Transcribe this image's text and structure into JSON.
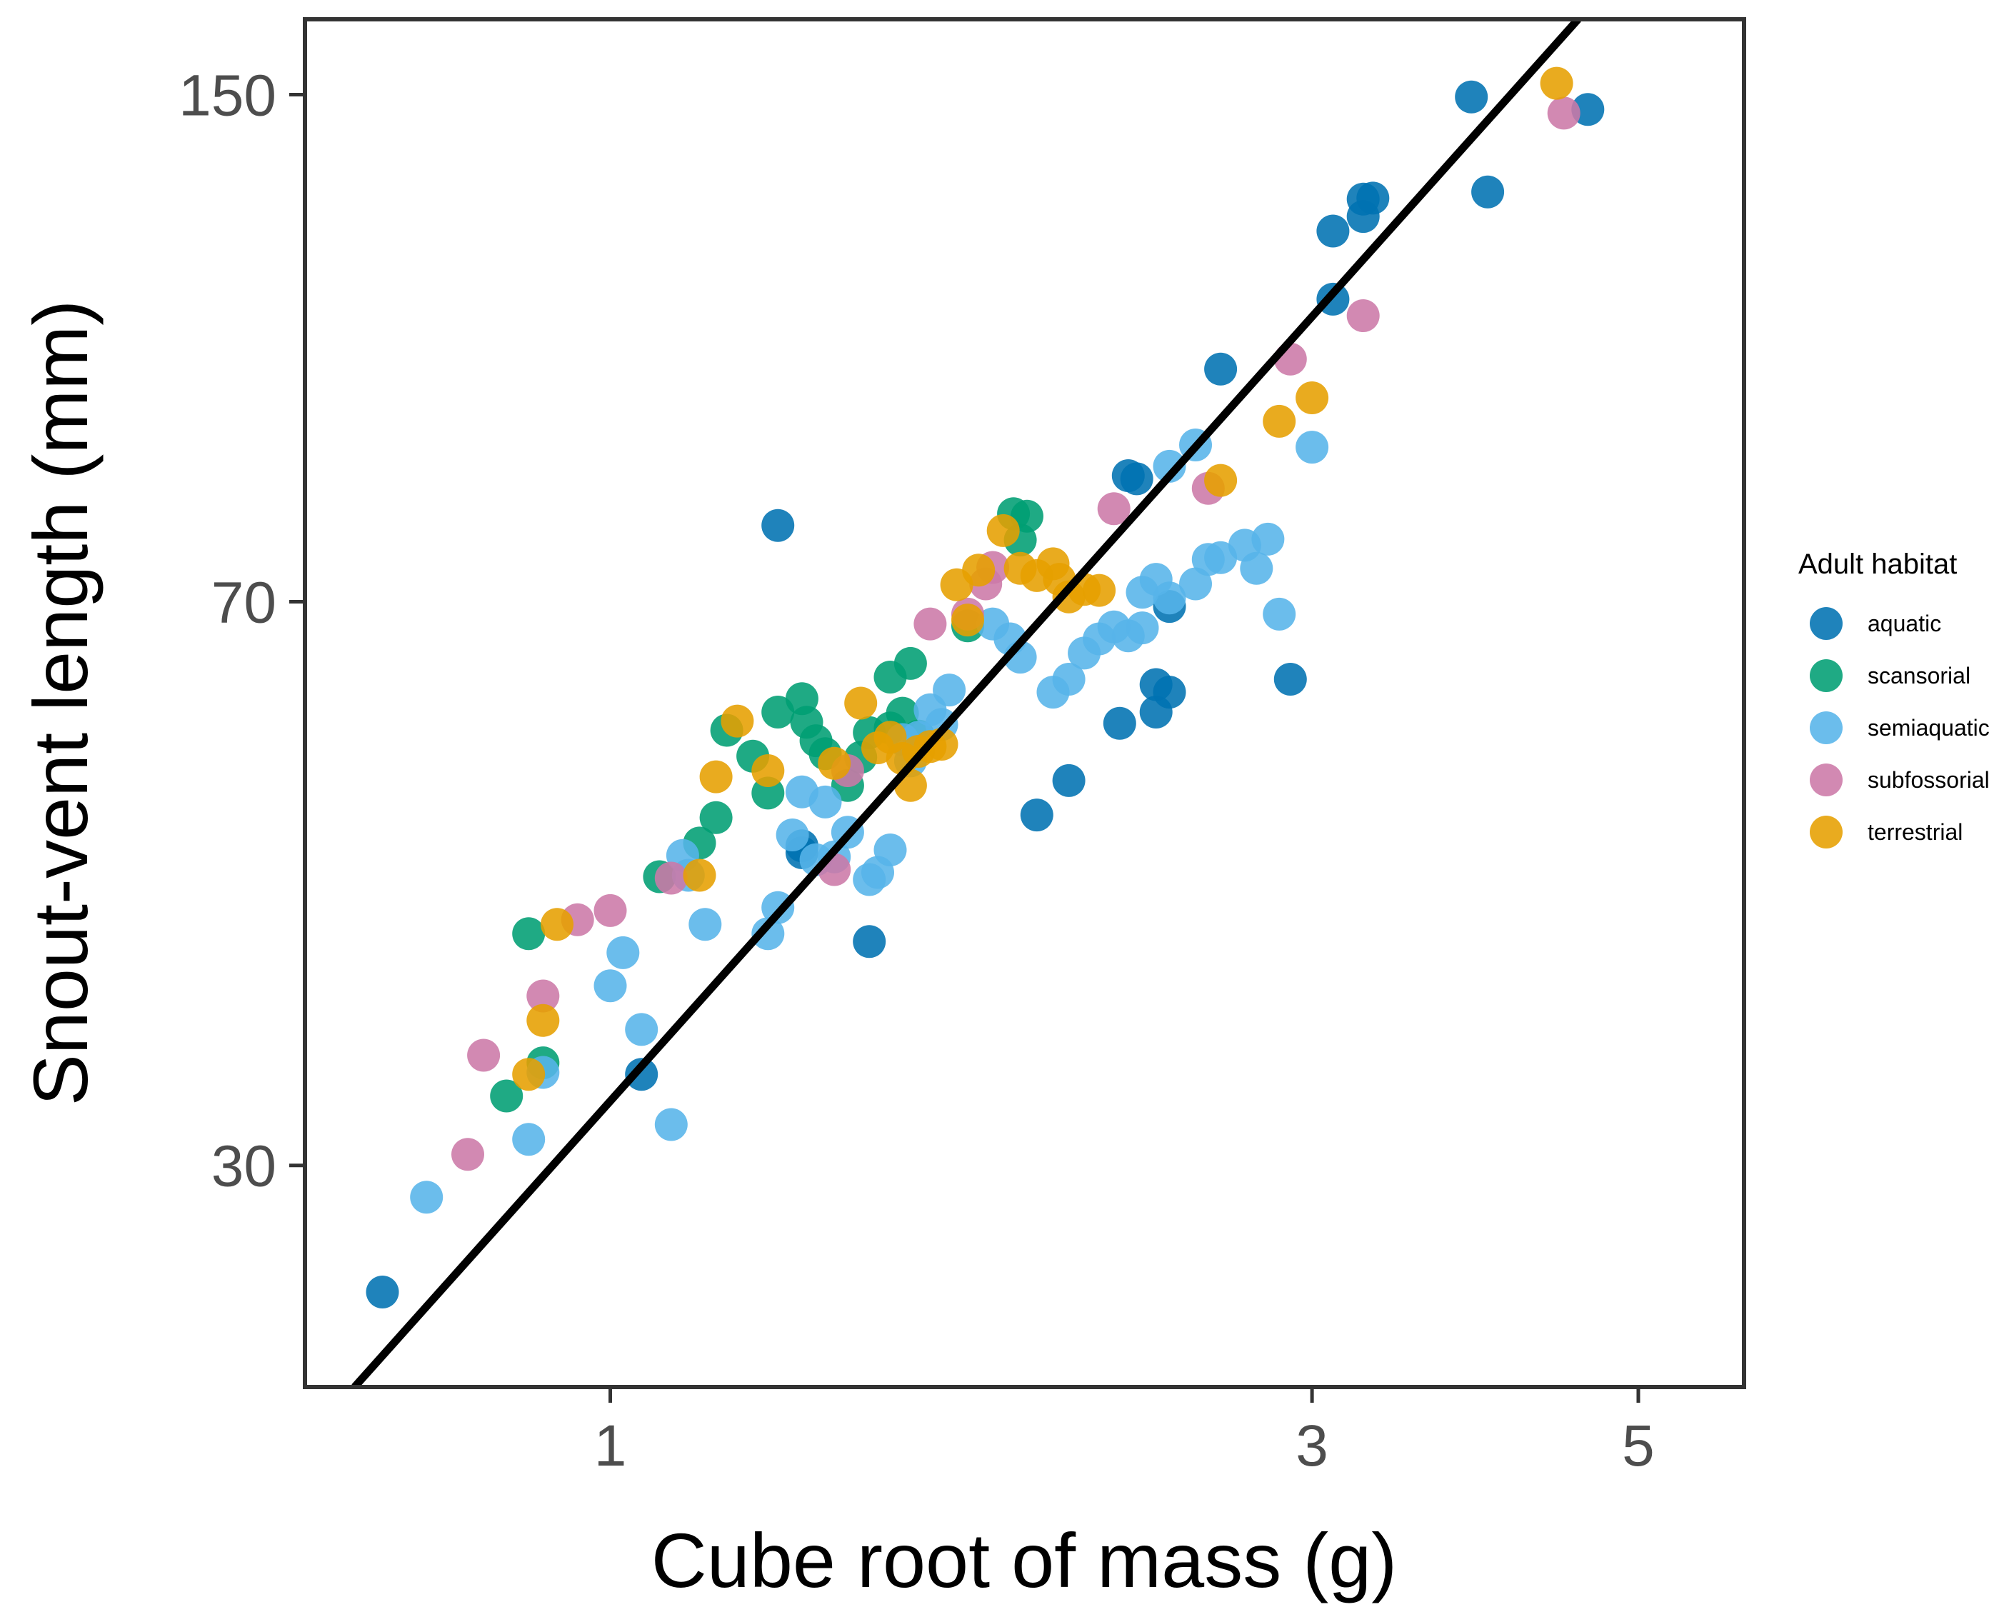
{
  "chart_data": {
    "type": "scatter",
    "xlabel": "Cube root of mass (g)",
    "ylabel": "Snout-vent length (mm)",
    "x_scale": "log",
    "y_scale": "log",
    "xlim": [
      0.62,
      5.9
    ],
    "ylim": [
      21.5,
      168
    ],
    "x_ticks": [
      {
        "value": 1,
        "label": "1"
      },
      {
        "value": 3,
        "label": "3"
      },
      {
        "value": 5,
        "label": "5"
      }
    ],
    "y_ticks": [
      {
        "value": 30,
        "label": "30"
      },
      {
        "value": 70,
        "label": "70"
      },
      {
        "value": 150,
        "label": "150"
      }
    ],
    "grid": false,
    "legend": {
      "title": "Adult habitat",
      "placement": "right",
      "entries": [
        {
          "name": "aquatic",
          "color": "#0072B2"
        },
        {
          "name": "scansorial",
          "color": "#009E73"
        },
        {
          "name": "semiaquatic",
          "color": "#56B4E9"
        },
        {
          "name": "subfossorial",
          "color": "#CC79A7"
        },
        {
          "name": "terrestrial",
          "color": "#E69F00"
        }
      ]
    },
    "fit_line": {
      "color": "#000000",
      "points": [
        [
          0.67,
          21.5
        ],
        [
          4.55,
          168
        ]
      ]
    },
    "series": [
      {
        "name": "aquatic",
        "color": "#0072B2",
        "points": [
          [
            0.7,
            24.8
          ],
          [
            1.05,
            34.4
          ],
          [
            1.3,
            78.5
          ],
          [
            1.35,
            48
          ],
          [
            1.35,
            48.5
          ],
          [
            1.5,
            42
          ],
          [
            1.95,
            50.8
          ],
          [
            2.05,
            53.5
          ],
          [
            2.22,
            58.3
          ],
          [
            2.25,
            84.6
          ],
          [
            2.28,
            84.2
          ],
          [
            2.35,
            61.8
          ],
          [
            2.35,
            59.3
          ],
          [
            2.4,
            69.5
          ],
          [
            2.4,
            61.1
          ],
          [
            2.6,
            99.3
          ],
          [
            2.9,
            62.3
          ],
          [
            3.1,
            110.3
          ],
          [
            3.1,
            122.2
          ],
          [
            3.25,
            128.2
          ],
          [
            3.25,
            124.9
          ],
          [
            3.3,
            128.4
          ],
          [
            3.85,
            149.5
          ],
          [
            3.95,
            129.6
          ],
          [
            4.62,
            146.7
          ]
        ]
      },
      {
        "name": "scansorial",
        "color": "#009E73",
        "points": [
          [
            0.88,
            42.5
          ],
          [
            0.9,
            35
          ],
          [
            0.85,
            33.3
          ],
          [
            1.08,
            46.3
          ],
          [
            1.15,
            48.7
          ],
          [
            1.18,
            50.6
          ],
          [
            1.2,
            57.7
          ],
          [
            1.25,
            55.5
          ],
          [
            1.28,
            52.5
          ],
          [
            1.3,
            59.3
          ],
          [
            1.35,
            60.5
          ],
          [
            1.36,
            58.4
          ],
          [
            1.38,
            56.8
          ],
          [
            1.4,
            55.7
          ],
          [
            1.45,
            53.1
          ],
          [
            1.48,
            55.4
          ],
          [
            1.5,
            57.5
          ],
          [
            1.55,
            57.9
          ],
          [
            1.58,
            59.2
          ],
          [
            1.6,
            63.8
          ],
          [
            1.62,
            57.2
          ],
          [
            1.75,
            67.5
          ],
          [
            1.88,
            79.9
          ],
          [
            1.92,
            79.6
          ],
          [
            1.9,
            76.8
          ],
          [
            1.55,
            62.5
          ]
        ]
      },
      {
        "name": "semiaquatic",
        "color": "#56B4E9",
        "points": [
          [
            0.75,
            28.6
          ],
          [
            0.88,
            31.2
          ],
          [
            0.9,
            34.5
          ],
          [
            1.0,
            39.3
          ],
          [
            1.02,
            41.3
          ],
          [
            1.05,
            36.8
          ],
          [
            1.1,
            31.9
          ],
          [
            1.12,
            47.8
          ],
          [
            1.13,
            46.4
          ],
          [
            1.16,
            43.1
          ],
          [
            1.28,
            42.5
          ],
          [
            1.3,
            44.2
          ],
          [
            1.33,
            49.3
          ],
          [
            1.35,
            52.6
          ],
          [
            1.38,
            47.5
          ],
          [
            1.4,
            51.8
          ],
          [
            1.42,
            47.7
          ],
          [
            1.45,
            49.5
          ],
          [
            1.5,
            46.1
          ],
          [
            1.52,
            46.6
          ],
          [
            1.55,
            48.2
          ],
          [
            1.58,
            56.9
          ],
          [
            1.6,
            55.1
          ],
          [
            1.62,
            57.1
          ],
          [
            1.65,
            59.5
          ],
          [
            1.68,
            58.2
          ],
          [
            1.7,
            61.3
          ],
          [
            1.82,
            67.7
          ],
          [
            1.87,
            66.2
          ],
          [
            1.9,
            64.4
          ],
          [
            2.0,
            61.1
          ],
          [
            2.05,
            62.3
          ],
          [
            2.1,
            64.8
          ],
          [
            2.15,
            66.2
          ],
          [
            2.2,
            67.4
          ],
          [
            2.25,
            66.5
          ],
          [
            2.3,
            67.3
          ],
          [
            2.3,
            71.0
          ],
          [
            2.35,
            72.4
          ],
          [
            2.4,
            70.4
          ],
          [
            2.5,
            71.9
          ],
          [
            2.55,
            74.6
          ],
          [
            2.6,
            74.8
          ],
          [
            2.7,
            76.2
          ],
          [
            2.75,
            73.6
          ],
          [
            2.8,
            76.9
          ],
          [
            2.85,
            68.7
          ],
          [
            3.0,
            88.3
          ],
          [
            2.4,
            85.8
          ],
          [
            2.5,
            88.6
          ]
        ]
      },
      {
        "name": "subfossorial",
        "color": "#CC79A7",
        "points": [
          [
            0.8,
            30.5
          ],
          [
            0.82,
            35.4
          ],
          [
            0.9,
            38.7
          ],
          [
            0.95,
            43.4
          ],
          [
            1.0,
            44.0
          ],
          [
            1.1,
            46.2
          ],
          [
            1.42,
            46.8
          ],
          [
            1.45,
            54.3
          ],
          [
            1.65,
            67.7
          ],
          [
            1.75,
            68.7
          ],
          [
            1.8,
            71.9
          ],
          [
            1.82,
            73.7
          ],
          [
            2.2,
            80.5
          ],
          [
            2.55,
            83.0
          ],
          [
            2.9,
            100.8
          ],
          [
            3.25,
            107.6
          ],
          [
            4.45,
            145.9
          ]
        ]
      },
      {
        "name": "terrestrial",
        "color": "#E69F00",
        "points": [
          [
            0.88,
            34.4
          ],
          [
            0.9,
            37.3
          ],
          [
            0.92,
            43.1
          ],
          [
            1.15,
            46.4
          ],
          [
            1.18,
            53.8
          ],
          [
            1.22,
            58.5
          ],
          [
            1.28,
            54.3
          ],
          [
            1.42,
            54.9
          ],
          [
            1.48,
            60.1
          ],
          [
            1.52,
            56.2
          ],
          [
            1.55,
            57.1
          ],
          [
            1.58,
            55.3
          ],
          [
            1.6,
            53.1
          ],
          [
            1.62,
            55.9
          ],
          [
            1.65,
            56.3
          ],
          [
            1.68,
            56.5
          ],
          [
            1.72,
            71.8
          ],
          [
            1.75,
            68.1
          ],
          [
            1.78,
            73.4
          ],
          [
            1.85,
            77.9
          ],
          [
            1.9,
            73.6
          ],
          [
            1.95,
            72.8
          ],
          [
            2.0,
            74.1
          ],
          [
            2.02,
            72.4
          ],
          [
            2.05,
            70.5
          ],
          [
            2.1,
            71.3
          ],
          [
            2.15,
            71.2
          ],
          [
            2.6,
            84.0
          ],
          [
            2.85,
            91.8
          ],
          [
            3.0,
            95.1
          ],
          [
            4.4,
            152.6
          ]
        ]
      }
    ]
  }
}
